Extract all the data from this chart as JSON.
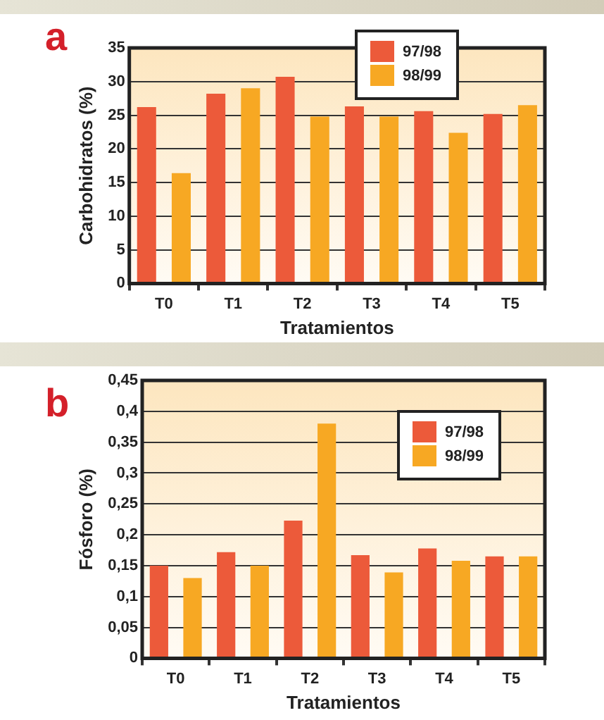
{
  "chart_data": [
    {
      "type": "bar",
      "title": "a",
      "xlabel": "Tratamientos",
      "ylabel": "Carbohidratos (%)",
      "categories": [
        "T0",
        "T1",
        "T2",
        "T3",
        "T4",
        "T5"
      ],
      "series": [
        {
          "name": "97/98",
          "color": "#ec5a3a",
          "values": [
            26.2,
            28.2,
            30.7,
            26.3,
            25.6,
            25.2
          ]
        },
        {
          "name": "98/99",
          "color": "#f7a823",
          "values": [
            16.4,
            29,
            24.8,
            24.8,
            22.4,
            26.5
          ]
        }
      ],
      "ylim": [
        0,
        35
      ],
      "yticks": [
        0,
        5,
        10,
        15,
        20,
        25,
        30,
        35
      ],
      "grid": "y",
      "legend": "top right"
    },
    {
      "type": "bar",
      "title": "b",
      "xlabel": "Tratamientos",
      "ylabel": "Fósforo (%)",
      "categories": [
        "T0",
        "T1",
        "T2",
        "T3",
        "T4",
        "T5"
      ],
      "series": [
        {
          "name": "97/98",
          "color": "#ec5a3a",
          "values": [
            0.15,
            0.172,
            0.223,
            0.167,
            0.178,
            0.165
          ]
        },
        {
          "name": "98/99",
          "color": "#f7a823",
          "values": [
            0.13,
            0.15,
            0.38,
            0.139,
            0.158,
            0.165
          ]
        }
      ],
      "ylim": [
        0,
        0.45
      ],
      "yticks": [
        0,
        {
          "value": 0.05,
          "label": "0,05"
        },
        {
          "value": 0.1,
          "label": "0,1"
        },
        {
          "value": 0.15,
          "label": "0,15"
        },
        {
          "value": 0.2,
          "label": "0,2"
        },
        {
          "value": 0.25,
          "label": "0,25"
        },
        {
          "value": 0.3,
          "label": "0,3"
        },
        {
          "value": 0.35,
          "label": "0,35"
        },
        {
          "value": 0.4,
          "label": "0,4"
        },
        {
          "value": 0.45,
          "label": "0,45"
        }
      ],
      "grid": "y",
      "legend": "top right"
    }
  ]
}
